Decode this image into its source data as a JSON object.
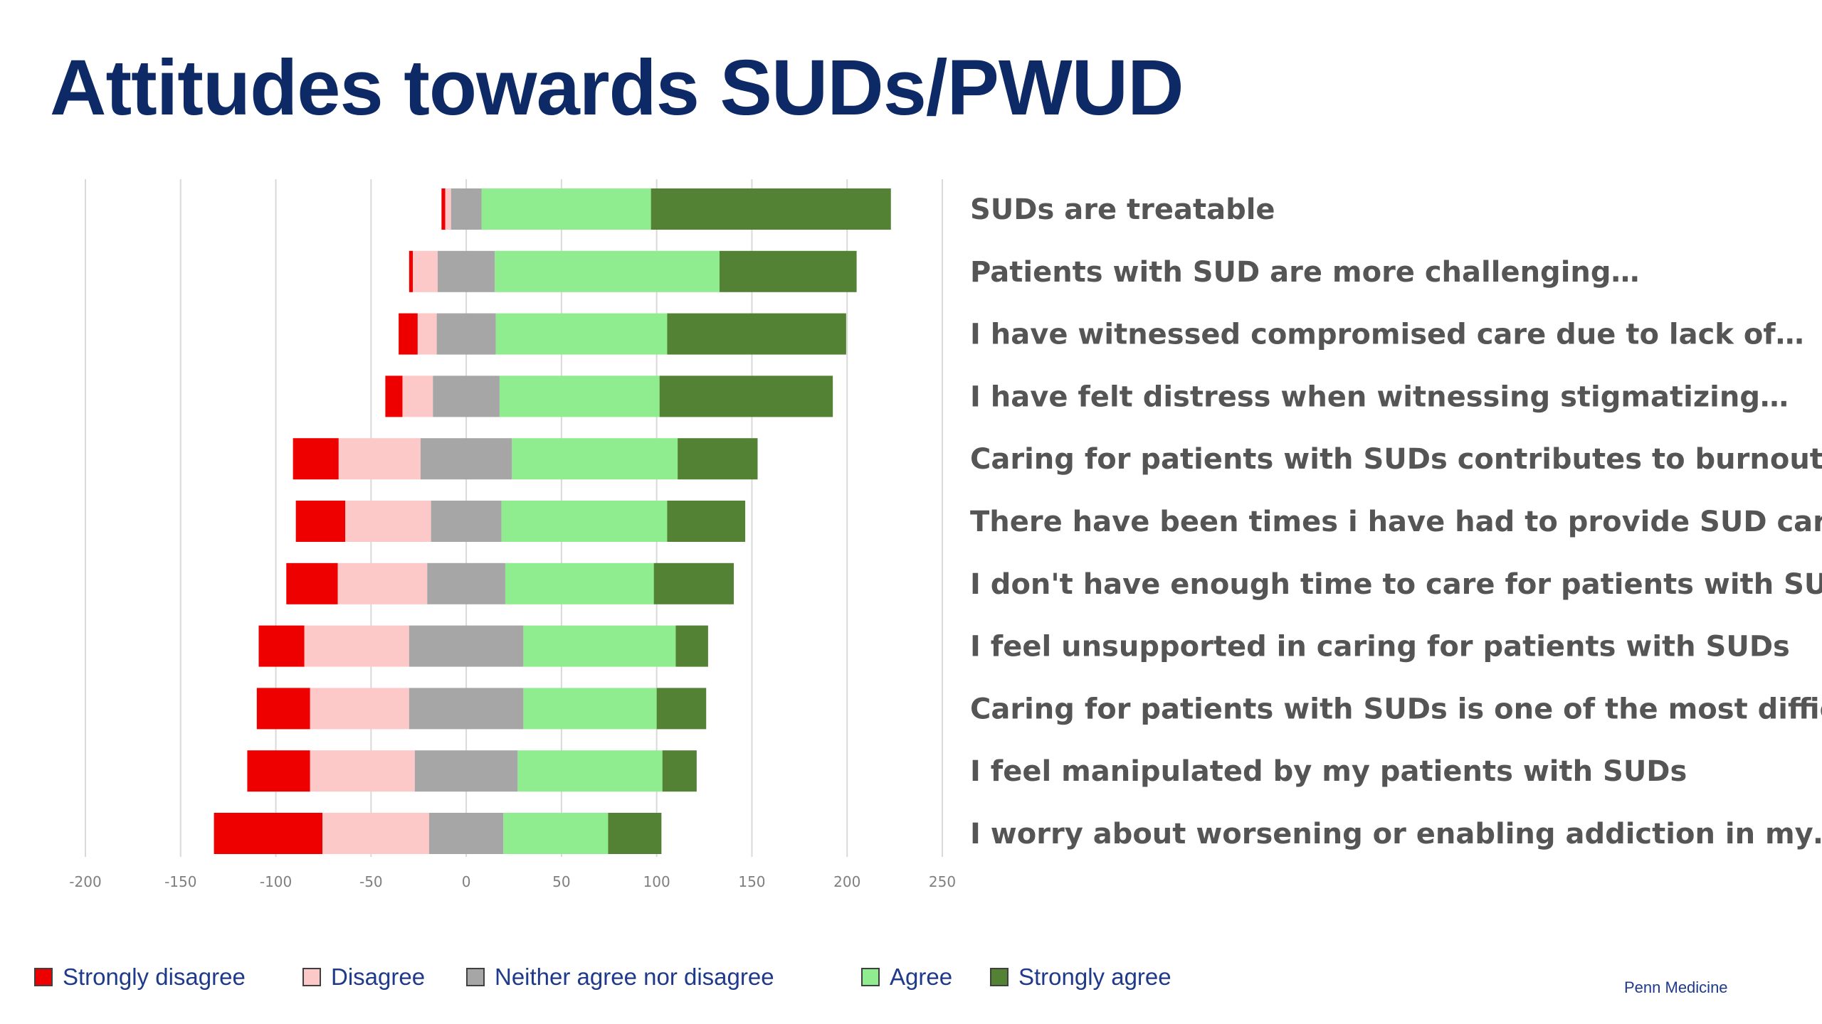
{
  "title": "Attitudes towards SUDs/PWUD",
  "brand": "Penn Medicine",
  "legend": [
    {
      "label": "Strongly disagree",
      "color": "#ee0000"
    },
    {
      "label": "Disagree",
      "color": "#fcc8c8"
    },
    {
      "label": "Neither agree nor disagree",
      "color": "#a6a6a6"
    },
    {
      "label": "Agree",
      "color": "#8fec8f"
    },
    {
      "label": "Strongly agree",
      "color": "#548235"
    }
  ],
  "chart_data": {
    "type": "bar",
    "orientation": "horizontal",
    "stacked": "diverging",
    "xlim": [
      -200,
      250
    ],
    "xticks": [
      "-200",
      "-150",
      "-100",
      "-50",
      "0",
      "50",
      "100",
      "150",
      "200",
      "250"
    ],
    "grid": true,
    "legend_position": "bottom",
    "categories": [
      "SUDs are treatable",
      "Patients with SUD are more challenging…",
      "I have witnessed compromised care due to lack of…",
      "I have felt distress when witnessing stigmatizing…",
      "Caring for patients with SUDs contributes to burnout",
      "There have been times i have had to provide SUD care I…",
      "I don't have enough time to care for patients with SUDs",
      "I feel unsupported in caring for patients with SUDs",
      "Caring for patients with SUDs is one of the most difficult…",
      "I feel manipulated by my patients with SUDs",
      "I worry about worsening or enabling addiction in my…"
    ],
    "series": [
      {
        "name": "Strongly disagree",
        "values": [
          2,
          2,
          10,
          9,
          24,
          26,
          27,
          24,
          28,
          33,
          57
        ]
      },
      {
        "name": "Disagree",
        "values": [
          3,
          13,
          10,
          16,
          43,
          45,
          47,
          55,
          52,
          55,
          56
        ]
      },
      {
        "name": "Neither agree nor disagree",
        "values": [
          16,
          30,
          31,
          35,
          48,
          37,
          41,
          60,
          60,
          54,
          39
        ]
      },
      {
        "name": "Agree",
        "values": [
          89,
          118,
          90,
          84,
          87,
          87,
          78,
          80,
          70,
          76,
          55
        ]
      },
      {
        "name": "Strongly agree",
        "values": [
          126,
          72,
          94,
          91,
          42,
          41,
          42,
          17,
          26,
          18,
          28
        ]
      }
    ]
  }
}
